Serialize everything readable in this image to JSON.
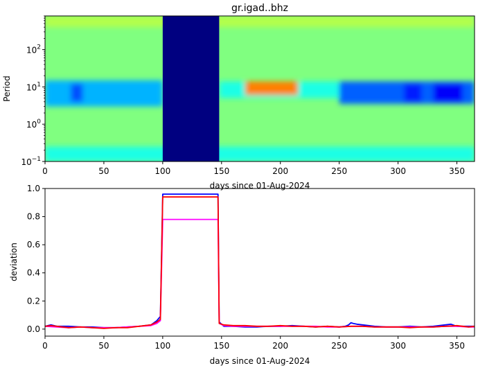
{
  "title": "gr.igad..bhz",
  "chart_data": [
    {
      "type": "heatmap",
      "title": "gr.igad..bhz",
      "xlabel": "days since 01-Aug-2024",
      "ylabel": "Period",
      "xlim": [
        0,
        365
      ],
      "ylim": [
        0.1,
        800
      ],
      "yscale": "log",
      "xticks": [
        "0",
        "50",
        "100",
        "150",
        "200",
        "250",
        "300",
        "350"
      ],
      "yticks": [
        {
          "value": 0.1,
          "base": "10",
          "exp": "−1"
        },
        {
          "value": 1,
          "base": "10",
          "exp": "0"
        },
        {
          "value": 10,
          "base": "10",
          "exp": "1"
        },
        {
          "value": 100,
          "base": "10",
          "exp": "2"
        }
      ],
      "colormap": "jet",
      "gap": {
        "x_start": 100,
        "x_end": 148,
        "color": "#000080"
      },
      "bands": [
        {
          "x": [
            0,
            100
          ],
          "period": [
            3,
            15
          ],
          "level": 0.3
        },
        {
          "x": [
            22,
            32
          ],
          "period": [
            4,
            12
          ],
          "level": 0.2
        },
        {
          "x": [
            148,
            250
          ],
          "period": [
            5,
            14
          ],
          "level": 0.4
        },
        {
          "x": [
            170,
            215
          ],
          "period": [
            6,
            14
          ],
          "level": 0.75
        },
        {
          "x": [
            250,
            365
          ],
          "period": [
            3.5,
            14
          ],
          "level": 0.22
        },
        {
          "x": [
            305,
            320
          ],
          "period": [
            4,
            12
          ],
          "level": 0.15
        },
        {
          "x": [
            330,
            355
          ],
          "period": [
            4,
            12
          ],
          "level": 0.12
        },
        {
          "x": [
            0,
            365
          ],
          "period": [
            0.1,
            0.25
          ],
          "level": 0.4
        },
        {
          "x": [
            0,
            365
          ],
          "period": [
            400,
            800
          ],
          "level": 0.55
        }
      ]
    },
    {
      "type": "line",
      "xlabel": "days since 01-Aug-2024",
      "ylabel": "deviation",
      "xlim": [
        0,
        365
      ],
      "ylim": [
        -0.05,
        1.0
      ],
      "xticks": [
        "0",
        "50",
        "100",
        "150",
        "200",
        "250",
        "300",
        "350"
      ],
      "yticks": [
        "0.0",
        "0.2",
        "0.4",
        "0.6",
        "0.8",
        "1.0"
      ],
      "series": [
        {
          "color": "#0000ff",
          "x": [
            0,
            5,
            10,
            20,
            30,
            40,
            50,
            60,
            70,
            80,
            90,
            95,
            98,
            100,
            147,
            148,
            152,
            160,
            170,
            180,
            190,
            200,
            210,
            220,
            230,
            240,
            250,
            255,
            258,
            260,
            262,
            265,
            270,
            280,
            290,
            300,
            310,
            320,
            330,
            340,
            345,
            350,
            360,
            365
          ],
          "y": [
            0.02,
            0.03,
            0.02,
            0.02,
            0.015,
            0.015,
            0.01,
            0.01,
            0.015,
            0.02,
            0.03,
            0.06,
            0.09,
            0.96,
            0.96,
            0.05,
            0.02,
            0.02,
            0.015,
            0.015,
            0.02,
            0.02,
            0.025,
            0.02,
            0.015,
            0.02,
            0.015,
            0.02,
            0.03,
            0.045,
            0.04,
            0.035,
            0.03,
            0.02,
            0.015,
            0.015,
            0.02,
            0.015,
            0.02,
            0.03,
            0.035,
            0.02,
            0.02,
            0.02
          ]
        },
        {
          "color": "#ff00ff",
          "x": [
            0,
            10,
            20,
            30,
            40,
            50,
            60,
            70,
            80,
            90,
            95,
            98,
            100,
            147,
            148,
            152,
            160,
            170,
            180,
            190,
            200,
            210,
            220,
            230,
            240,
            250,
            260,
            270,
            280,
            290,
            300,
            310,
            320,
            330,
            340,
            350,
            360,
            365
          ],
          "y": [
            0.02,
            0.015,
            0.01,
            0.015,
            0.01,
            0.01,
            0.01,
            0.015,
            0.02,
            0.025,
            0.04,
            0.06,
            0.78,
            0.78,
            0.04,
            0.025,
            0.02,
            0.02,
            0.02,
            0.02,
            0.02,
            0.02,
            0.02,
            0.02,
            0.015,
            0.015,
            0.02,
            0.02,
            0.015,
            0.015,
            0.015,
            0.015,
            0.015,
            0.015,
            0.02,
            0.02,
            0.015,
            0.015
          ]
        },
        {
          "color": "#ff0000",
          "x": [
            0,
            5,
            10,
            20,
            30,
            40,
            50,
            60,
            70,
            80,
            90,
            95,
            98,
            100,
            147,
            148,
            152,
            160,
            170,
            180,
            190,
            200,
            210,
            220,
            230,
            240,
            250,
            260,
            270,
            280,
            290,
            300,
            310,
            320,
            330,
            340,
            350,
            360,
            365
          ],
          "y": [
            0.02,
            0.025,
            0.02,
            0.01,
            0.015,
            0.01,
            0.005,
            0.01,
            0.01,
            0.02,
            0.03,
            0.05,
            0.07,
            0.94,
            0.94,
            0.04,
            0.03,
            0.025,
            0.025,
            0.02,
            0.02,
            0.025,
            0.02,
            0.02,
            0.015,
            0.02,
            0.015,
            0.02,
            0.02,
            0.015,
            0.015,
            0.015,
            0.01,
            0.015,
            0.015,
            0.02,
            0.025,
            0.015,
            0.02
          ]
        }
      ]
    }
  ]
}
